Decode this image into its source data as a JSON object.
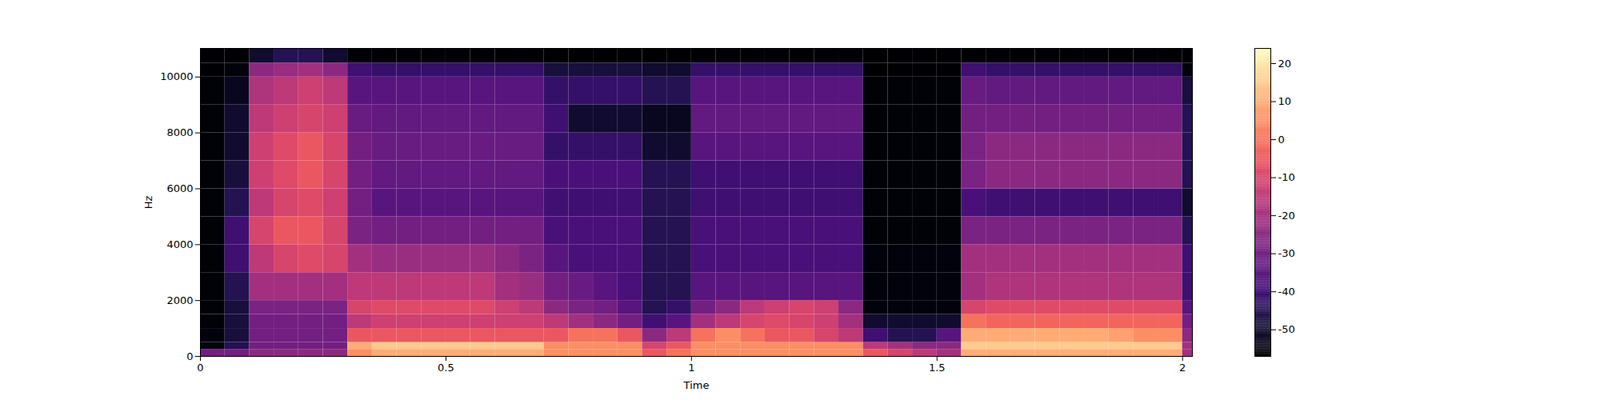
{
  "chart_data": {
    "type": "heatmap",
    "x_label": "Time",
    "y_label": "Hz",
    "xlim": [
      0,
      2.02
    ],
    "xticks": [
      0,
      0.5,
      1,
      1.5,
      2
    ],
    "ylim": [
      0,
      11025
    ],
    "yticks": [
      0,
      2000,
      4000,
      6000,
      8000,
      10000
    ],
    "color": "magma",
    "clim": [
      -57,
      24
    ],
    "cticks": [
      -50,
      -40,
      -30,
      -20,
      -10,
      0,
      10,
      20
    ],
    "x_edges": [
      0,
      0.05,
      0.1,
      0.15,
      0.2,
      0.25,
      0.3,
      0.35,
      0.4,
      0.45,
      0.5,
      0.55,
      0.6,
      0.65,
      0.7,
      0.75,
      0.8,
      0.85,
      0.9,
      0.95,
      1,
      1.05,
      1.1,
      1.15,
      1.2,
      1.25,
      1.3,
      1.35,
      1.4,
      1.45,
      1.5,
      1.55,
      1.6,
      1.65,
      1.7,
      1.75,
      1.8,
      1.85,
      1.9,
      1.95,
      2,
      2.02
    ],
    "y_edges": [
      0,
      250,
      500,
      1000,
      1500,
      2000,
      3000,
      4000,
      5000,
      6000,
      7000,
      8000,
      9000,
      10000,
      10500,
      11025
    ],
    "z": [
      [
        -30,
        -30,
        -25,
        -25,
        -25,
        -25,
        5,
        10,
        10,
        10,
        10,
        10,
        10,
        10,
        5,
        5,
        5,
        5,
        -5,
        0,
        5,
        5,
        5,
        5,
        5,
        5,
        5,
        -5,
        -10,
        -15,
        -20,
        10,
        10,
        10,
        10,
        10,
        10,
        10,
        10,
        10,
        -20
      ],
      [
        -55,
        -45,
        -30,
        -30,
        -30,
        -30,
        10,
        15,
        15,
        15,
        15,
        15,
        15,
        15,
        5,
        5,
        5,
        5,
        -10,
        -5,
        5,
        5,
        5,
        5,
        5,
        5,
        5,
        -15,
        -20,
        -25,
        -25,
        15,
        15,
        15,
        15,
        15,
        15,
        15,
        15,
        15,
        -20
      ],
      [
        -55,
        -48,
        -30,
        -30,
        -30,
        -30,
        -5,
        -5,
        -5,
        -5,
        -5,
        -5,
        -5,
        -5,
        -5,
        0,
        0,
        -5,
        -25,
        -15,
        0,
        5,
        0,
        -5,
        -5,
        -10,
        -15,
        -40,
        -45,
        -45,
        -35,
        10,
        10,
        10,
        10,
        10,
        10,
        8,
        5,
        5,
        -25
      ],
      [
        -56,
        -48,
        -30,
        -30,
        -30,
        -30,
        -15,
        -12,
        -12,
        -12,
        -12,
        -12,
        -12,
        -12,
        -15,
        -20,
        -25,
        -30,
        -40,
        -35,
        -20,
        -15,
        -10,
        -8,
        -10,
        -12,
        -20,
        -50,
        -50,
        -50,
        -50,
        0,
        -2,
        -2,
        -2,
        -2,
        -2,
        -2,
        -2,
        -2,
        -30
      ],
      [
        -56,
        -48,
        -28,
        -28,
        -28,
        -28,
        -10,
        -8,
        -8,
        -8,
        -8,
        -8,
        -12,
        -15,
        -25,
        -28,
        -30,
        -35,
        -45,
        -42,
        -30,
        -25,
        -15,
        -12,
        -10,
        -12,
        -25,
        -55,
        -55,
        -55,
        -55,
        -10,
        -8,
        -8,
        -8,
        -8,
        -8,
        -8,
        -8,
        -8,
        -35
      ],
      [
        -56,
        -45,
        -20,
        -20,
        -20,
        -20,
        -15,
        -15,
        -15,
        -15,
        -15,
        -15,
        -20,
        -22,
        -30,
        -32,
        -35,
        -38,
        -45,
        -45,
        -35,
        -35,
        -35,
        -35,
        -35,
        -35,
        -35,
        -55,
        -55,
        -55,
        -55,
        -20,
        -18,
        -18,
        -18,
        -18,
        -18,
        -18,
        -18,
        -18,
        -40
      ],
      [
        -56,
        -40,
        -15,
        -10,
        -8,
        -10,
        -20,
        -22,
        -22,
        -22,
        -22,
        -22,
        -25,
        -28,
        -35,
        -38,
        -38,
        -38,
        -45,
        -45,
        -38,
        -38,
        -38,
        -38,
        -38,
        -38,
        -38,
        -55,
        -55,
        -55,
        -55,
        -20,
        -20,
        -20,
        -20,
        -20,
        -20,
        -20,
        -20,
        -20,
        -40
      ],
      [
        -56,
        -40,
        -10,
        -5,
        -5,
        -10,
        -28,
        -30,
        -30,
        -30,
        -30,
        -30,
        -30,
        -30,
        -38,
        -38,
        -38,
        -38,
        -45,
        -45,
        -38,
        -38,
        -38,
        -38,
        -38,
        -38,
        -38,
        -56,
        -56,
        -56,
        -56,
        -28,
        -28,
        -28,
        -28,
        -28,
        -28,
        -28,
        -28,
        -28,
        -45
      ],
      [
        -56,
        -45,
        -15,
        -10,
        -8,
        -12,
        -30,
        -35,
        -35,
        -35,
        -35,
        -35,
        -35,
        -35,
        -40,
        -40,
        -40,
        -40,
        -45,
        -45,
        -40,
        -40,
        -40,
        -40,
        -40,
        -40,
        -40,
        -56,
        -56,
        -56,
        -56,
        -38,
        -40,
        -40,
        -40,
        -40,
        -40,
        -40,
        -40,
        -40,
        -50
      ],
      [
        -56,
        -48,
        -12,
        -8,
        -5,
        -10,
        -30,
        -33,
        -33,
        -33,
        -33,
        -33,
        -33,
        -33,
        -38,
        -38,
        -38,
        -38,
        -45,
        -45,
        -40,
        -40,
        -40,
        -40,
        -40,
        -40,
        -40,
        -56,
        -56,
        -56,
        -56,
        -28,
        -25,
        -25,
        -25,
        -25,
        -25,
        -25,
        -25,
        -25,
        -45
      ],
      [
        -56,
        -50,
        -12,
        -8,
        -5,
        -10,
        -30,
        -32,
        -32,
        -32,
        -32,
        -32,
        -32,
        -32,
        -42,
        -42,
        -42,
        -42,
        -50,
        -50,
        -35,
        -35,
        -35,
        -35,
        -35,
        -35,
        -35,
        -56,
        -56,
        -56,
        -56,
        -28,
        -25,
        -25,
        -25,
        -25,
        -25,
        -25,
        -25,
        -25,
        -45
      ],
      [
        -56,
        -50,
        -15,
        -12,
        -10,
        -12,
        -32,
        -33,
        -33,
        -33,
        -33,
        -33,
        -33,
        -33,
        -40,
        -50,
        -50,
        -50,
        -52,
        -52,
        -33,
        -33,
        -33,
        -33,
        -33,
        -33,
        -33,
        -56,
        -56,
        -56,
        -56,
        -30,
        -30,
        -30,
        -30,
        -30,
        -30,
        -30,
        -30,
        -30,
        -45
      ],
      [
        -56,
        -52,
        -18,
        -15,
        -12,
        -15,
        -35,
        -35,
        -35,
        -35,
        -35,
        -35,
        -35,
        -35,
        -42,
        -42,
        -42,
        -42,
        -45,
        -45,
        -35,
        -35,
        -35,
        -35,
        -35,
        -35,
        -35,
        -56,
        -56,
        -56,
        -56,
        -32,
        -33,
        -33,
        -33,
        -33,
        -33,
        -33,
        -33,
        -33,
        -48
      ],
      [
        -57,
        -55,
        -25,
        -22,
        -20,
        -25,
        -40,
        -42,
        -42,
        -42,
        -42,
        -42,
        -42,
        -42,
        -48,
        -48,
        -48,
        -48,
        -50,
        -50,
        -42,
        -42,
        -42,
        -42,
        -42,
        -42,
        -42,
        -57,
        -57,
        -57,
        -57,
        -40,
        -42,
        -42,
        -42,
        -42,
        -42,
        -42,
        -42,
        -42,
        -55
      ],
      [
        -57,
        -57,
        -50,
        -45,
        -45,
        -50,
        -57,
        -57,
        -57,
        -57,
        -57,
        -57,
        -57,
        -57,
        -57,
        -57,
        -57,
        -57,
        -57,
        -57,
        -57,
        -57,
        -57,
        -57,
        -57,
        -57,
        -57,
        -57,
        -57,
        -57,
        -57,
        -57,
        -57,
        -57,
        -57,
        -57,
        -57,
        -57,
        -57,
        -57,
        -57
      ]
    ]
  }
}
